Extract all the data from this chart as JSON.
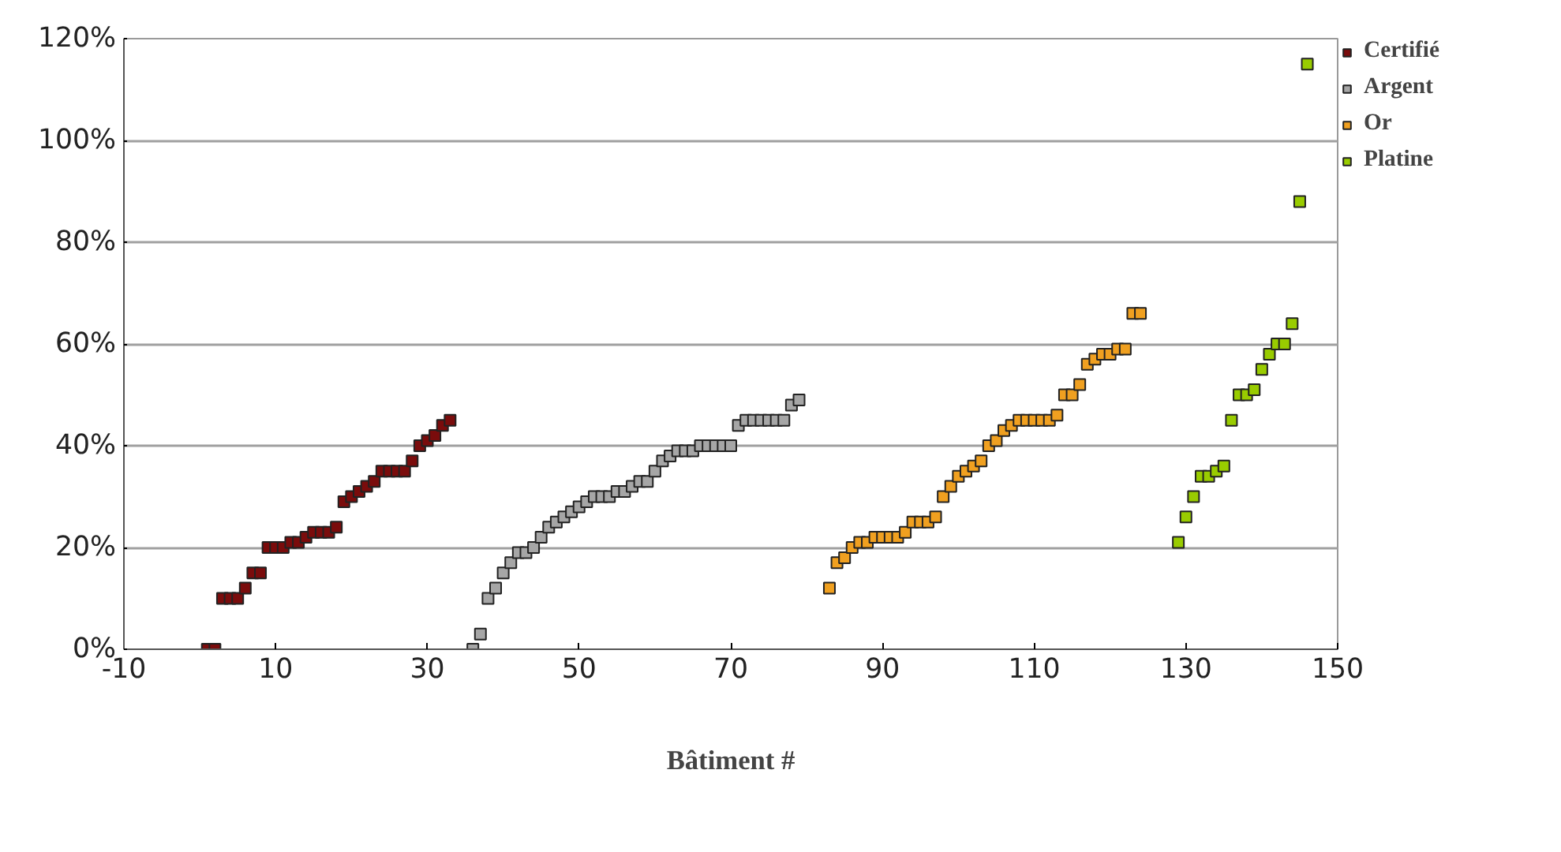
{
  "chart_data": {
    "type": "scatter",
    "xlabel": "Bâtiment #",
    "marker": "square",
    "grid": "y",
    "legend": "right",
    "xlim": [
      -10,
      150
    ],
    "xticks": [
      -10,
      10,
      30,
      50,
      70,
      90,
      110,
      130,
      150
    ],
    "ylim": [
      0,
      120
    ],
    "yticks": [
      {
        "value": 0,
        "label": "0%"
      },
      {
        "value": 20,
        "label": "20%"
      },
      {
        "value": 40,
        "label": "40%"
      },
      {
        "value": 60,
        "label": "60%"
      },
      {
        "value": 80,
        "label": "80%"
      },
      {
        "value": 100,
        "label": "100%"
      },
      {
        "value": 120,
        "label": "120%"
      }
    ],
    "series": [
      {
        "name": "Certifié",
        "color": "#7a0c0c",
        "x": [
          1,
          2,
          3,
          4,
          5,
          6,
          7,
          8,
          9,
          10,
          11,
          12,
          13,
          14,
          15,
          16,
          17,
          18,
          19,
          20,
          21,
          22,
          23,
          24,
          25,
          26,
          27,
          28,
          29,
          30,
          31,
          32,
          33
        ],
        "values": [
          0,
          0,
          10,
          10,
          10,
          12,
          15,
          15,
          20,
          20,
          20,
          21,
          21,
          22,
          23,
          23,
          23,
          24,
          29,
          30,
          31,
          32,
          33,
          35,
          35,
          35,
          35,
          37,
          40,
          41,
          42,
          44,
          45
        ]
      },
      {
        "name": "Argent",
        "color": "#a6a6a6",
        "x": [
          36,
          37,
          38,
          39,
          40,
          41,
          42,
          43,
          44,
          45,
          46,
          47,
          48,
          49,
          50,
          51,
          52,
          53,
          54,
          55,
          56,
          57,
          58,
          59,
          60,
          61,
          62,
          63,
          64,
          65,
          66,
          67,
          68,
          69,
          70,
          71,
          72,
          73,
          74,
          75,
          76,
          77,
          78,
          79
        ],
        "values": [
          0,
          3,
          10,
          12,
          15,
          17,
          19,
          19,
          20,
          22,
          24,
          25,
          26,
          27,
          28,
          29,
          30,
          30,
          30,
          31,
          31,
          32,
          33,
          33,
          35,
          37,
          38,
          39,
          39,
          39,
          40,
          40,
          40,
          40,
          40,
          44,
          45,
          45,
          45,
          45,
          45,
          45,
          48,
          49
        ]
      },
      {
        "name": "Or",
        "color": "#f0a020",
        "x": [
          83,
          84,
          85,
          86,
          87,
          88,
          89,
          90,
          91,
          92,
          93,
          94,
          95,
          96,
          97,
          98,
          99,
          100,
          101,
          102,
          103,
          104,
          105,
          106,
          107,
          108,
          109,
          110,
          111,
          112,
          113,
          114,
          115,
          116,
          117,
          118,
          119,
          120,
          121,
          122,
          123,
          124
        ],
        "values": [
          12,
          17,
          18,
          20,
          21,
          21,
          22,
          22,
          22,
          22,
          23,
          25,
          25,
          25,
          26,
          30,
          32,
          34,
          35,
          36,
          37,
          40,
          41,
          43,
          44,
          45,
          45,
          45,
          45,
          45,
          46,
          50,
          50,
          52,
          56,
          57,
          58,
          58,
          59,
          59,
          66,
          66
        ]
      },
      {
        "name": "Platine",
        "color": "#99cc00",
        "x": [
          129,
          130,
          131,
          132,
          133,
          134,
          135,
          136,
          137,
          138,
          139,
          140,
          141,
          142,
          143,
          144,
          145,
          146
        ],
        "values": [
          21,
          26,
          30,
          34,
          34,
          35,
          36,
          45,
          50,
          50,
          51,
          55,
          58,
          60,
          60,
          64,
          88,
          115
        ]
      }
    ]
  }
}
